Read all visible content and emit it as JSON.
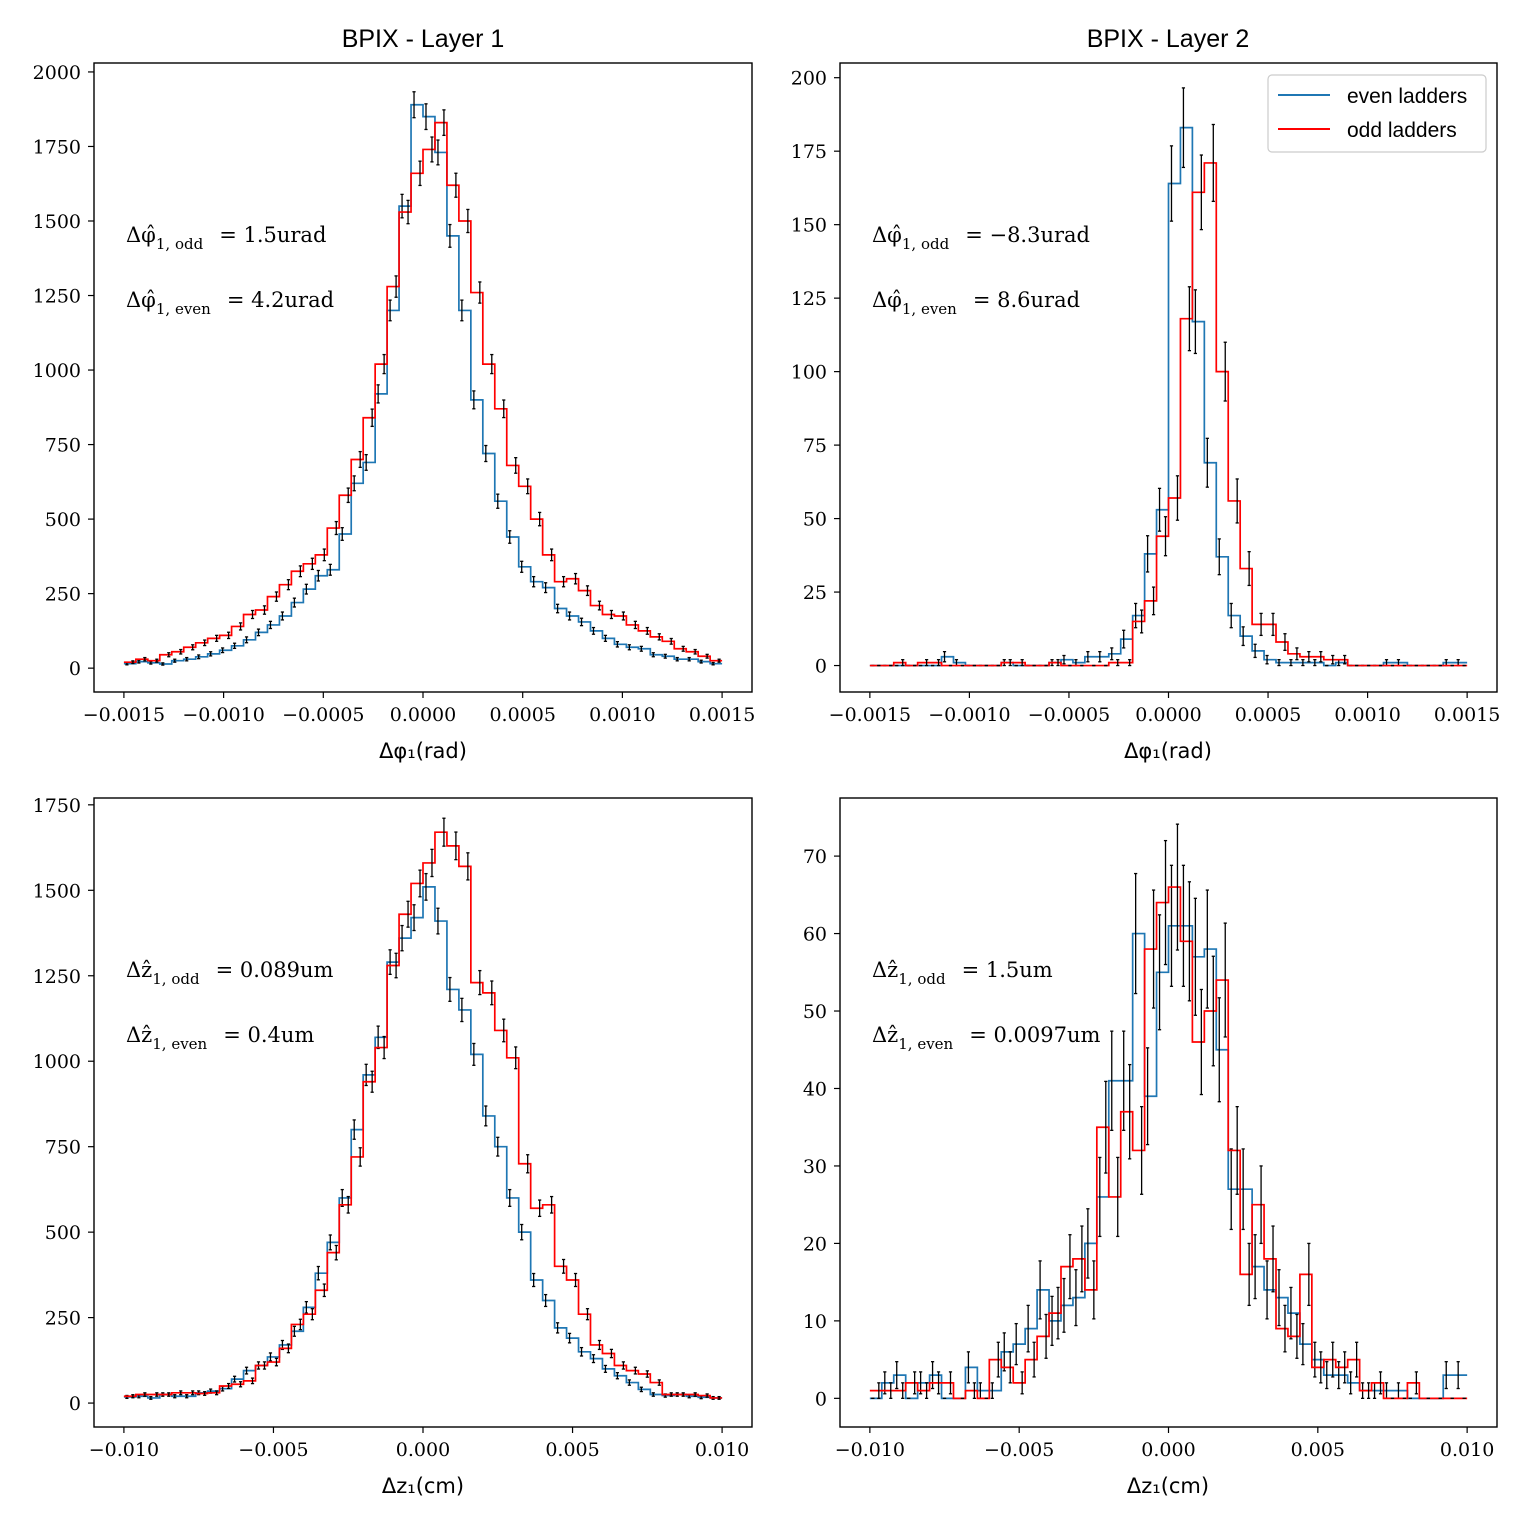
{
  "colors": {
    "even": "#1f77b4",
    "odd": "#ff0000",
    "errorbar": "#000000"
  },
  "legend": {
    "even_label": "even ladders",
    "odd_label": "odd ladders",
    "placement": "top-right"
  },
  "chart_data": [
    {
      "type": "histogram",
      "title": "BPIX - Layer 1",
      "xlabel": "Δφ₁(rad)",
      "xlim": [
        -0.00165,
        0.00165
      ],
      "ylim": [
        -80,
        2030
      ],
      "xticks": [
        -0.0015,
        -0.001,
        -0.0005,
        0.0,
        0.0005,
        0.001,
        0.0015
      ],
      "xtick_labels": [
        "−0.0015",
        "−0.0010",
        "−0.0005",
        "0.0000",
        "0.0005",
        "0.0010",
        "0.0015"
      ],
      "yticks": [
        0,
        250,
        500,
        750,
        1000,
        1250,
        1500,
        1750,
        2000
      ],
      "ytick_labels": [
        "0",
        "250",
        "500",
        "750",
        "1000",
        "1250",
        "1500",
        "1750",
        "2000"
      ],
      "bins": {
        "start": -0.0015,
        "end": 0.0015,
        "count": 50
      },
      "series": [
        {
          "name": "even ladders",
          "values": [
            15,
            22,
            18,
            14,
            25,
            30,
            38,
            48,
            60,
            75,
            95,
            120,
            145,
            175,
            220,
            265,
            310,
            330,
            450,
            620,
            690,
            920,
            1200,
            1550,
            1890,
            1850,
            1730,
            1450,
            1200,
            900,
            720,
            560,
            440,
            340,
            290,
            270,
            200,
            175,
            155,
            125,
            100,
            80,
            70,
            65,
            45,
            40,
            30,
            30,
            22,
            15
          ]
        },
        {
          "name": "odd ladders",
          "values": [
            20,
            30,
            25,
            45,
            55,
            70,
            85,
            100,
            110,
            140,
            180,
            195,
            240,
            280,
            325,
            350,
            380,
            470,
            580,
            700,
            840,
            1020,
            1280,
            1530,
            1660,
            1740,
            1830,
            1620,
            1500,
            1260,
            1020,
            870,
            680,
            610,
            500,
            380,
            290,
            300,
            260,
            210,
            180,
            175,
            145,
            125,
            105,
            90,
            65,
            55,
            40,
            25
          ]
        }
      ],
      "annotations": [
        {
          "label_main": "Δφ̂",
          "label_sub": "1, odd",
          "value": "= 1.5urad"
        },
        {
          "label_main": "Δφ̂",
          "label_sub": "1, even",
          "value": "= 4.2urad"
        }
      ]
    },
    {
      "type": "histogram",
      "title": "BPIX - Layer 2",
      "xlabel": "Δφ₁(rad)",
      "xlim": [
        -0.00165,
        0.00165
      ],
      "ylim": [
        -9,
        205
      ],
      "xticks": [
        -0.0015,
        -0.001,
        -0.0005,
        0.0,
        0.0005,
        0.001,
        0.0015
      ],
      "xtick_labels": [
        "−0.0015",
        "−0.0010",
        "−0.0005",
        "0.0000",
        "0.0005",
        "0.0010",
        "0.0015"
      ],
      "yticks": [
        0,
        25,
        50,
        75,
        100,
        125,
        150,
        175,
        200
      ],
      "ytick_labels": [
        "0",
        "25",
        "50",
        "75",
        "100",
        "125",
        "150",
        "175",
        "200"
      ],
      "bins": {
        "start": -0.0015,
        "end": 0.0015,
        "count": 50
      },
      "series": [
        {
          "name": "even ladders",
          "values": [
            0,
            0,
            0,
            0,
            0,
            0,
            3,
            1,
            0,
            0,
            0,
            1,
            0,
            0,
            0,
            1,
            2,
            1,
            3,
            3,
            4,
            9,
            17,
            38,
            53,
            164,
            183,
            117,
            69,
            37,
            17,
            10,
            5,
            2,
            1,
            1,
            1,
            1,
            0,
            1,
            0,
            0,
            0,
            1,
            1,
            0,
            0,
            0,
            1,
            1
          ]
        },
        {
          "name": "odd ladders",
          "values": [
            0,
            0,
            1,
            0,
            1,
            1,
            0,
            0,
            0,
            0,
            0,
            1,
            1,
            0,
            0,
            1,
            0,
            0,
            0,
            0,
            1,
            1,
            15,
            22,
            44,
            57,
            118,
            161,
            171,
            100,
            56,
            33,
            14,
            14,
            8,
            4,
            3,
            3,
            2,
            2,
            0,
            0,
            0,
            0,
            0,
            0,
            0,
            0,
            0,
            0
          ]
        }
      ],
      "annotations": [
        {
          "label_main": "Δφ̂",
          "label_sub": "1, odd",
          "value": "= −8.3urad"
        },
        {
          "label_main": "Δφ̂",
          "label_sub": "1, even",
          "value": "= 8.6urad"
        }
      ]
    },
    {
      "type": "histogram",
      "title": "",
      "xlabel": "Δz₁(cm)",
      "xlim": [
        -0.011,
        0.011
      ],
      "ylim": [
        -70,
        1770
      ],
      "xticks": [
        -0.01,
        -0.005,
        0.0,
        0.005,
        0.01
      ],
      "xtick_labels": [
        "−0.010",
        "−0.005",
        "0.000",
        "0.005",
        "0.010"
      ],
      "yticks": [
        0,
        250,
        500,
        750,
        1000,
        1250,
        1500,
        1750
      ],
      "ytick_labels": [
        "0",
        "250",
        "500",
        "750",
        "1000",
        "1250",
        "1500",
        "1750"
      ],
      "bins": {
        "start": -0.01,
        "end": 0.01,
        "count": 50
      },
      "series": [
        {
          "name": "even ladders",
          "values": [
            18,
            20,
            15,
            25,
            20,
            20,
            30,
            35,
            42,
            70,
            95,
            110,
            135,
            170,
            210,
            280,
            380,
            470,
            600,
            800,
            960,
            1070,
            1290,
            1360,
            1420,
            1510,
            1410,
            1210,
            1150,
            1020,
            840,
            750,
            600,
            500,
            360,
            300,
            220,
            190,
            150,
            130,
            100,
            80,
            60,
            40,
            25,
            22,
            25,
            20,
            17,
            15
          ]
        },
        {
          "name": "odd ladders",
          "values": [
            20,
            25,
            25,
            25,
            30,
            30,
            28,
            30,
            50,
            55,
            65,
            110,
            120,
            160,
            230,
            260,
            330,
            440,
            580,
            720,
            940,
            1040,
            1280,
            1430,
            1520,
            1580,
            1670,
            1630,
            1570,
            1230,
            1200,
            1090,
            1010,
            700,
            570,
            580,
            400,
            360,
            260,
            170,
            145,
            110,
            95,
            85,
            60,
            25,
            25,
            25,
            22,
            15
          ]
        }
      ],
      "annotations": [
        {
          "label_main": "Δẑ",
          "label_sub": "1, odd",
          "value": "= 0.089um"
        },
        {
          "label_main": "Δẑ",
          "label_sub": "1, even",
          "value": "= 0.4um"
        }
      ]
    },
    {
      "type": "histogram",
      "title": "",
      "xlabel": "Δz₁(cm)",
      "xlim": [
        -0.011,
        0.011
      ],
      "ylim": [
        -3.7,
        77.5
      ],
      "xticks": [
        -0.01,
        -0.005,
        0.0,
        0.005,
        0.01
      ],
      "xtick_labels": [
        "−0.010",
        "−0.005",
        "0.000",
        "0.005",
        "0.010"
      ],
      "yticks": [
        0,
        10,
        20,
        30,
        40,
        50,
        60,
        70
      ],
      "ytick_labels": [
        "0",
        "10",
        "20",
        "30",
        "40",
        "50",
        "60",
        "70"
      ],
      "bins": {
        "start": -0.01,
        "end": 0.01,
        "count": 50
      },
      "series": [
        {
          "name": "even ladders",
          "values": [
            0,
            2,
            3,
            0,
            2,
            3,
            0,
            0,
            4,
            1,
            1,
            6,
            7,
            9,
            14,
            10,
            12,
            13,
            20,
            26,
            41,
            41,
            60,
            39,
            55,
            61,
            61,
            57,
            58,
            45,
            27,
            27,
            17,
            14,
            13,
            11,
            7,
            5,
            3,
            3,
            2,
            1,
            1,
            1,
            1,
            0,
            0,
            0,
            3,
            3
          ]
        },
        {
          "name": "odd ladders",
          "values": [
            1,
            1,
            1,
            2,
            1,
            2,
            2,
            0,
            1,
            0,
            5,
            4,
            2,
            5,
            8,
            11,
            17,
            18,
            14,
            35,
            26,
            37,
            32,
            58,
            64,
            66,
            59,
            46,
            50,
            54,
            32,
            16,
            25,
            18,
            9,
            8,
            16,
            4,
            5,
            4,
            5,
            1,
            2,
            0,
            0,
            2,
            0,
            0,
            0,
            0
          ]
        }
      ],
      "annotations": [
        {
          "label_main": "Δẑ",
          "label_sub": "1, odd",
          "value": "= 1.5um"
        },
        {
          "label_main": "Δẑ",
          "label_sub": "1, even",
          "value": "= 0.0097um"
        }
      ]
    }
  ]
}
